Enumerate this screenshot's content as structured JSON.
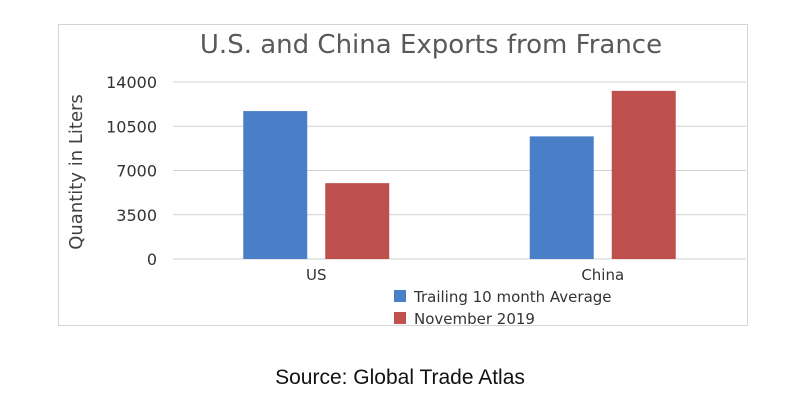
{
  "chart_data": {
    "type": "bar",
    "title": "U.S. and China Exports from France",
    "ylabel": "Quantity in Liters",
    "xlabel": "",
    "categories": [
      "US",
      "China"
    ],
    "yticks": [
      "0",
      "3500",
      "7000",
      "10500",
      "14000"
    ],
    "ylim": [
      0,
      14000
    ],
    "grid": true,
    "legend_position": "bottom",
    "series": [
      {
        "name": "Trailing 10 month Average",
        "color": "#4a7ec7",
        "values": [
          11700,
          9700
        ]
      },
      {
        "name": "November 2019",
        "color": "#c0504d",
        "values": [
          6000,
          13300
        ]
      }
    ]
  },
  "source": "Source: Global Trade Atlas"
}
